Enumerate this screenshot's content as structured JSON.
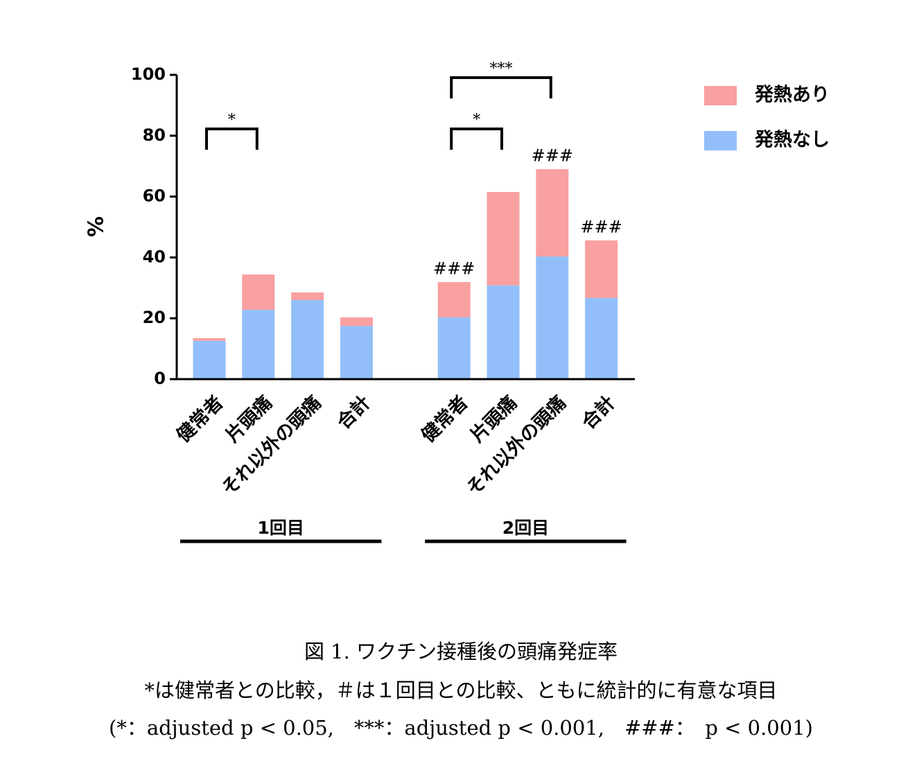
{
  "chart_data": {
    "type": "stacked-bar",
    "y_label": "%",
    "categories": [
      "健常者",
      "片頭痛",
      "それ以外の頭痛",
      "合計",
      "健常者",
      "片頭痛",
      "それ以外の頭痛",
      "合計"
    ],
    "groups": [
      "1回目",
      "2回目"
    ],
    "series": [
      {
        "name": "発熱なし",
        "color": "#92bff9",
        "values": [
          12.6,
          22.8,
          26.0,
          17.5,
          20.3,
          30.8,
          40.3,
          26.7
        ]
      },
      {
        "name": "発熱あり",
        "color": "#f9a0a0",
        "values": [
          0.9,
          11.6,
          2.5,
          2.8,
          11.6,
          30.7,
          28.7,
          18.9
        ]
      }
    ],
    "ylim": [
      0,
      100
    ],
    "yticks": [
      0,
      20,
      40,
      60,
      80,
      100
    ],
    "annotations": [
      "*",
      "*",
      "***",
      "###",
      "###",
      "###"
    ],
    "caption": [
      "図 1. ワクチン接種後の頭痛発症率",
      "*は健常者との比較，＃は１回目との比較、ともに統計的に有意な項目",
      "(*：adjusted p < 0.05,　***：adjusted p < 0.001,　###：　p < 0.001)"
    ]
  }
}
